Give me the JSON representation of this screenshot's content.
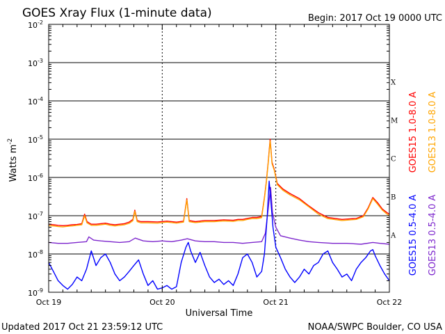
{
  "header": {
    "title": "GOES Xray Flux (1-minute data)",
    "begin_label": "Begin:  2017 Oct 19 0000 UTC"
  },
  "footer": {
    "updated": "Updated 2017 Oct 21 23:59:12 UTC",
    "credit": "NOAA/SWPC Boulder, CO USA"
  },
  "chart_data": {
    "type": "line",
    "title": "GOES Xray Flux (1-minute data)",
    "xlabel": "Universal Time",
    "ylabel": "Watts m",
    "ylabel_superscript": "-2",
    "y_scale": "log",
    "ylim": [
      1e-09,
      0.01
    ],
    "xlim_hours": [
      0,
      72
    ],
    "x_ticks": [
      {
        "label": "Oct 19",
        "hour": 0
      },
      {
        "label": "Oct 20",
        "hour": 24
      },
      {
        "label": "Oct 21",
        "hour": 48
      },
      {
        "label": "Oct 22",
        "hour": 72
      }
    ],
    "y_ticks": [
      {
        "base": "10",
        "exp": "-2",
        "value": 0.01
      },
      {
        "base": "10",
        "exp": "-3",
        "value": 0.001
      },
      {
        "base": "10",
        "exp": "-4",
        "value": 0.0001
      },
      {
        "base": "10",
        "exp": "-5",
        "value": 1e-05
      },
      {
        "base": "10",
        "exp": "-6",
        "value": 1e-06
      },
      {
        "base": "10",
        "exp": "-7",
        "value": 1e-07
      },
      {
        "base": "10",
        "exp": "-8",
        "value": 1e-08
      },
      {
        "base": "10",
        "exp": "-9",
        "value": 1e-09
      }
    ],
    "flare_classes": [
      {
        "label": "X",
        "low": 0.0001,
        "high": 0.001
      },
      {
        "label": "M",
        "low": 1e-05,
        "high": 0.0001
      },
      {
        "label": "C",
        "low": 1e-06,
        "high": 1e-05
      },
      {
        "label": "B",
        "low": 1e-07,
        "high": 1e-06
      },
      {
        "label": "A",
        "low": 1e-08,
        "high": 1e-07
      }
    ],
    "grid": "horizontal lines at each decade above 1e-8, dotted vertical lines at each day",
    "legend_placement": "right, vertical",
    "series": [
      {
        "name": "GOES15 1.0-8.0 A",
        "color": "#ff0000",
        "points": [
          [
            0,
            6e-08
          ],
          [
            1,
            5.8e-08
          ],
          [
            2,
            5.6e-08
          ],
          [
            3,
            5.5e-08
          ],
          [
            4,
            5.6e-08
          ],
          [
            5,
            5.8e-08
          ],
          [
            6,
            5.9e-08
          ],
          [
            7,
            6.2e-08
          ],
          [
            7.6,
            1.1e-07
          ],
          [
            8.1,
            7e-08
          ],
          [
            9,
            6e-08
          ],
          [
            10,
            6e-08
          ],
          [
            11,
            6.2e-08
          ],
          [
            12,
            6.4e-08
          ],
          [
            13,
            6e-08
          ],
          [
            14,
            5.8e-08
          ],
          [
            15,
            6e-08
          ],
          [
            16,
            6.2e-08
          ],
          [
            17,
            6.8e-08
          ],
          [
            17.8,
            8e-08
          ],
          [
            18.2,
            1.4e-07
          ],
          [
            18.7,
            7.5e-08
          ],
          [
            19.5,
            7e-08
          ],
          [
            21,
            7e-08
          ],
          [
            23,
            6.9e-08
          ],
          [
            25,
            7.2e-08
          ],
          [
            27,
            6.8e-08
          ],
          [
            28.5,
            7.2e-08
          ],
          [
            29.2,
            2.8e-07
          ],
          [
            29.7,
            7.5e-08
          ],
          [
            31,
            7e-08
          ],
          [
            33,
            7.5e-08
          ],
          [
            35,
            7.5e-08
          ],
          [
            37,
            7.8e-08
          ],
          [
            39,
            7.6e-08
          ],
          [
            40,
            8e-08
          ],
          [
            41,
            8e-08
          ],
          [
            42,
            8.5e-08
          ],
          [
            43,
            9e-08
          ],
          [
            44,
            9e-08
          ],
          [
            45,
            9.5e-08
          ],
          [
            45.6,
            3e-07
          ],
          [
            46,
            8e-07
          ],
          [
            46.4,
            2.6e-06
          ],
          [
            46.8,
            1e-05
          ],
          [
            47.2,
            2.5e-06
          ],
          [
            47.7,
            1.6e-06
          ],
          [
            48.3,
            7e-07
          ],
          [
            49.5,
            5e-07
          ],
          [
            51,
            3.8e-07
          ],
          [
            53,
            2.8e-07
          ],
          [
            55,
            1.8e-07
          ],
          [
            57,
            1.2e-07
          ],
          [
            59,
            9e-08
          ],
          [
            62,
            8e-08
          ],
          [
            65,
            8.5e-08
          ],
          [
            66.5,
            1e-07
          ],
          [
            67.5,
            1.6e-07
          ],
          [
            68.5,
            3e-07
          ],
          [
            69.5,
            2.2e-07
          ],
          [
            70.5,
            1.5e-07
          ],
          [
            71.5,
            1.2e-07
          ],
          [
            72,
            1.1e-07
          ]
        ]
      },
      {
        "name": "GOES13 1.0-8.0 A",
        "color": "#ffa500",
        "points": [
          [
            0,
            5.5e-08
          ],
          [
            1,
            5.4e-08
          ],
          [
            2,
            5.2e-08
          ],
          [
            3,
            5.1e-08
          ],
          [
            4,
            5.3e-08
          ],
          [
            5,
            5.4e-08
          ],
          [
            6,
            5.6e-08
          ],
          [
            7,
            5.8e-08
          ],
          [
            7.6,
            1e-07
          ],
          [
            8.1,
            6.5e-08
          ],
          [
            9,
            5.6e-08
          ],
          [
            10,
            5.6e-08
          ],
          [
            11,
            5.8e-08
          ],
          [
            12,
            6e-08
          ],
          [
            13,
            5.6e-08
          ],
          [
            14,
            5.4e-08
          ],
          [
            15,
            5.6e-08
          ],
          [
            16,
            5.8e-08
          ],
          [
            17,
            6.3e-08
          ],
          [
            17.8,
            7.4e-08
          ],
          [
            18.2,
            1.3e-07
          ],
          [
            18.7,
            7e-08
          ],
          [
            19.5,
            6.5e-08
          ],
          [
            21,
            6.5e-08
          ],
          [
            23,
            6.4e-08
          ],
          [
            25,
            6.8e-08
          ],
          [
            27,
            6.4e-08
          ],
          [
            28.5,
            6.8e-08
          ],
          [
            29.2,
            2.6e-07
          ],
          [
            29.7,
            7e-08
          ],
          [
            31,
            6.6e-08
          ],
          [
            33,
            7e-08
          ],
          [
            35,
            7e-08
          ],
          [
            37,
            7.3e-08
          ],
          [
            39,
            7.1e-08
          ],
          [
            40,
            7.5e-08
          ],
          [
            41,
            7.5e-08
          ],
          [
            42,
            8e-08
          ],
          [
            43,
            8.4e-08
          ],
          [
            44,
            8.4e-08
          ],
          [
            45,
            8.9e-08
          ],
          [
            45.6,
            2.8e-07
          ],
          [
            46,
            7.5e-07
          ],
          [
            46.4,
            2.4e-06
          ],
          [
            46.8,
            9e-06
          ],
          [
            47.2,
            2.3e-06
          ],
          [
            47.7,
            1.5e-06
          ],
          [
            48.3,
            6.5e-07
          ],
          [
            49.5,
            4.6e-07
          ],
          [
            51,
            3.5e-07
          ],
          [
            53,
            2.6e-07
          ],
          [
            55,
            1.7e-07
          ],
          [
            57,
            1.1e-07
          ],
          [
            59,
            8.4e-08
          ],
          [
            62,
            7.5e-08
          ],
          [
            65,
            8e-08
          ],
          [
            66.5,
            9.4e-08
          ],
          [
            67.5,
            1.5e-07
          ],
          [
            68.5,
            2.8e-07
          ],
          [
            69.5,
            2e-07
          ],
          [
            70.5,
            1.4e-07
          ],
          [
            71.5,
            1.1e-07
          ],
          [
            72,
            1e-07
          ]
        ]
      },
      {
        "name": "GOES13 0.5-4.0 A",
        "color": "#7d26cd",
        "points": [
          [
            0,
            2e-08
          ],
          [
            2,
            1.9e-08
          ],
          [
            4,
            1.9e-08
          ],
          [
            6,
            2e-08
          ],
          [
            8,
            2.1e-08
          ],
          [
            8.5,
            2.8e-08
          ],
          [
            9.5,
            2.3e-08
          ],
          [
            11,
            2.2e-08
          ],
          [
            13,
            2.1e-08
          ],
          [
            15,
            2e-08
          ],
          [
            17,
            2.1e-08
          ],
          [
            18.3,
            2.6e-08
          ],
          [
            20,
            2.2e-08
          ],
          [
            22,
            2.1e-08
          ],
          [
            24,
            2.2e-08
          ],
          [
            26,
            2.1e-08
          ],
          [
            28,
            2.3e-08
          ],
          [
            29.3,
            2.5e-08
          ],
          [
            31,
            2.2e-08
          ],
          [
            33,
            2.1e-08
          ],
          [
            35,
            2.1e-08
          ],
          [
            37,
            2e-08
          ],
          [
            39,
            2e-08
          ],
          [
            41,
            1.9e-08
          ],
          [
            43,
            2e-08
          ],
          [
            45,
            2.1e-08
          ],
          [
            45.8,
            3.5e-08
          ],
          [
            46.5,
            2e-07
          ],
          [
            46.9,
            5.5e-07
          ],
          [
            47.3,
            1.2e-07
          ],
          [
            48,
            5e-08
          ],
          [
            49,
            3e-08
          ],
          [
            51,
            2.6e-08
          ],
          [
            53,
            2.3e-08
          ],
          [
            55,
            2.1e-08
          ],
          [
            57,
            2e-08
          ],
          [
            60,
            1.9e-08
          ],
          [
            63,
            1.9e-08
          ],
          [
            66,
            1.8e-08
          ],
          [
            68.5,
            2e-08
          ],
          [
            70,
            1.9e-08
          ],
          [
            72,
            1.8e-08
          ]
        ]
      },
      {
        "name": "GOES15 0.5-4.0 A",
        "color": "#0000ff",
        "points": [
          [
            0,
            6e-09
          ],
          [
            1,
            3.5e-09
          ],
          [
            2,
            2e-09
          ],
          [
            3,
            1.5e-09
          ],
          [
            4,
            1.2e-09
          ],
          [
            5,
            1.6e-09
          ],
          [
            6,
            2.5e-09
          ],
          [
            7,
            2e-09
          ],
          [
            8,
            4e-09
          ],
          [
            9,
            1.2e-08
          ],
          [
            10,
            5e-09
          ],
          [
            11,
            8e-09
          ],
          [
            12,
            1e-08
          ],
          [
            13,
            6e-09
          ],
          [
            14,
            3e-09
          ],
          [
            15,
            2e-09
          ],
          [
            16,
            2.5e-09
          ],
          [
            17,
            3.5e-09
          ],
          [
            18,
            5e-09
          ],
          [
            19,
            7e-09
          ],
          [
            20,
            3e-09
          ],
          [
            21,
            1.5e-09
          ],
          [
            22,
            2e-09
          ],
          [
            23,
            1.2e-09
          ],
          [
            24,
            1.3e-09
          ],
          [
            25,
            1.5e-09
          ],
          [
            26,
            1.2e-09
          ],
          [
            27,
            1.4e-09
          ],
          [
            28,
            6e-09
          ],
          [
            29,
            1.5e-08
          ],
          [
            29.5,
            2e-08
          ],
          [
            30,
            1.2e-08
          ],
          [
            31,
            6e-09
          ],
          [
            32,
            1.1e-08
          ],
          [
            33,
            5e-09
          ],
          [
            34,
            2.5e-09
          ],
          [
            35,
            1.8e-09
          ],
          [
            36,
            2.2e-09
          ],
          [
            37,
            1.6e-09
          ],
          [
            38,
            2e-09
          ],
          [
            39,
            1.5e-09
          ],
          [
            40,
            3e-09
          ],
          [
            41,
            8e-09
          ],
          [
            42,
            1e-08
          ],
          [
            43,
            6e-09
          ],
          [
            44,
            2.5e-09
          ],
          [
            45,
            3.5e-09
          ],
          [
            45.6,
            1e-08
          ],
          [
            46.2,
            1e-07
          ],
          [
            46.6,
            8e-07
          ],
          [
            47,
            2e-07
          ],
          [
            47.4,
            5e-08
          ],
          [
            48,
            1.5e-08
          ],
          [
            49,
            8e-09
          ],
          [
            50,
            4e-09
          ],
          [
            51,
            2.5e-09
          ],
          [
            52,
            1.8e-09
          ],
          [
            53,
            2.5e-09
          ],
          [
            54,
            4e-09
          ],
          [
            55,
            3e-09
          ],
          [
            56,
            5e-09
          ],
          [
            57,
            6e-09
          ],
          [
            58,
            1e-08
          ],
          [
            59,
            1.2e-08
          ],
          [
            60,
            6e-09
          ],
          [
            61,
            4e-09
          ],
          [
            62,
            2.5e-09
          ],
          [
            63,
            3e-09
          ],
          [
            64,
            2e-09
          ],
          [
            65,
            4e-09
          ],
          [
            66,
            6e-09
          ],
          [
            67,
            8e-09
          ],
          [
            68,
            1.2e-08
          ],
          [
            68.5,
            1.3e-08
          ],
          [
            69,
            9e-09
          ],
          [
            70,
            5e-09
          ],
          [
            71,
            3e-09
          ],
          [
            72,
            2e-09
          ]
        ]
      }
    ]
  }
}
